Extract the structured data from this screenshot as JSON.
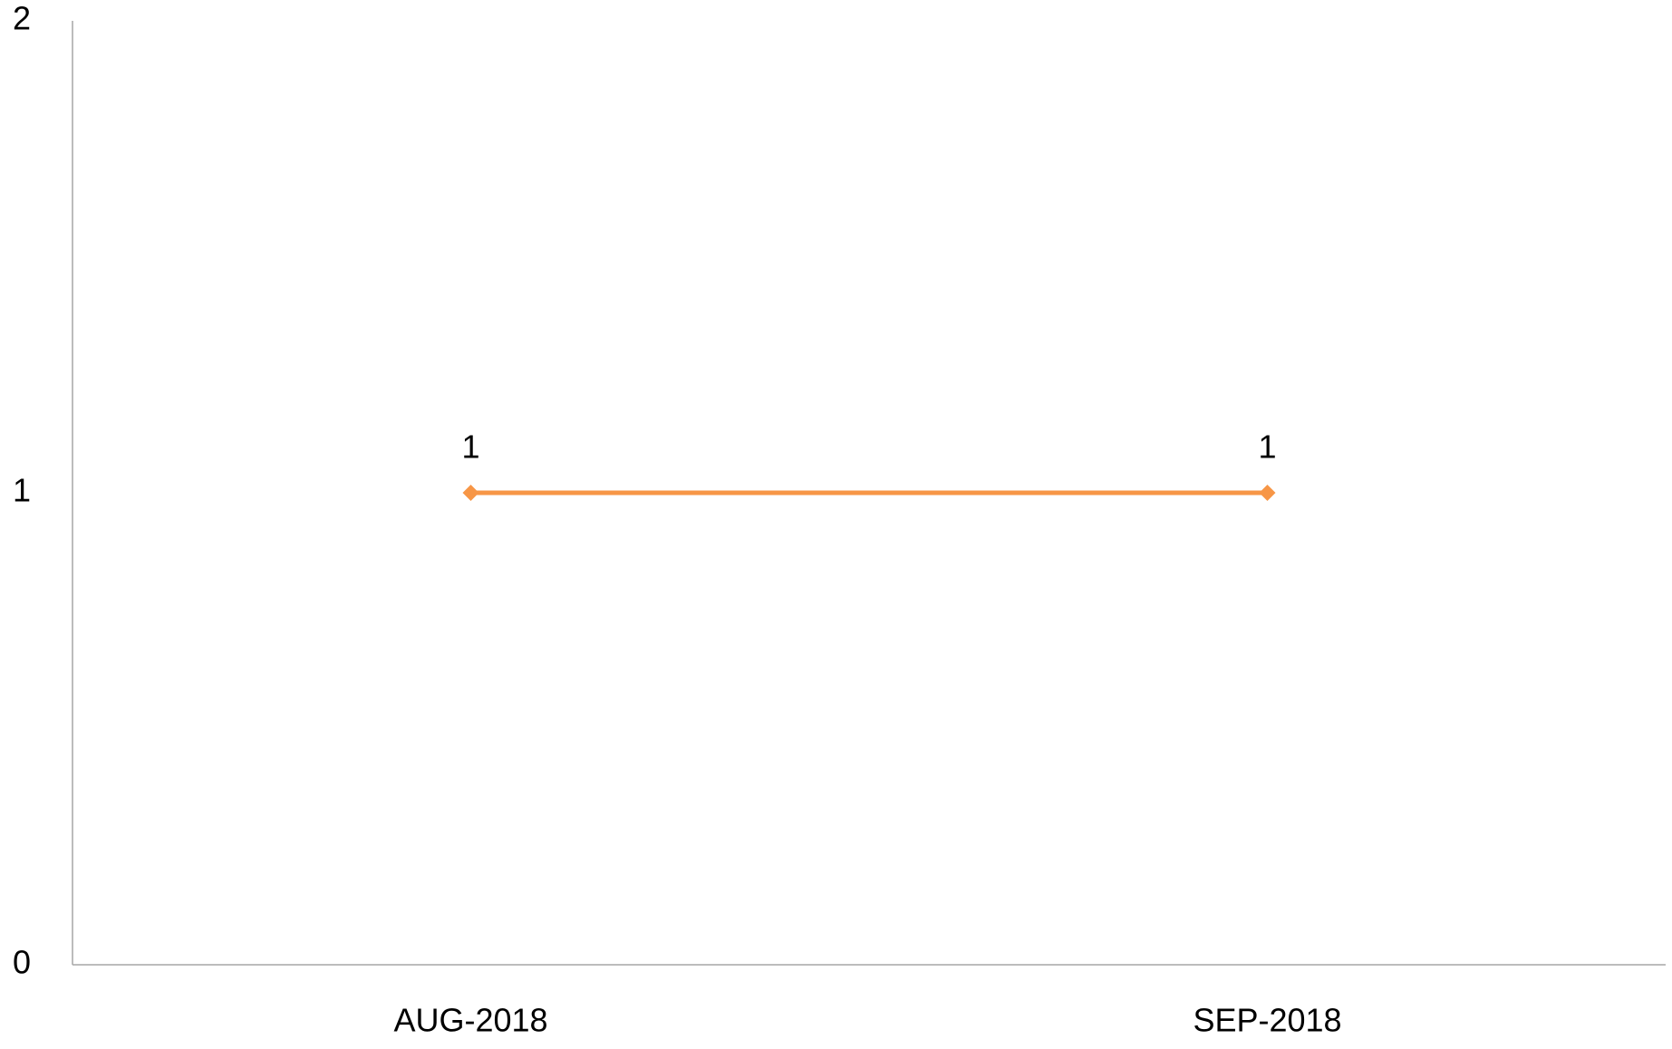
{
  "chart_data": {
    "type": "line",
    "categories": [
      "AUG-2018",
      "SEP-2018"
    ],
    "series": [
      {
        "color": "#f79646",
        "values": [
          1,
          1
        ]
      }
    ],
    "ylim": [
      0,
      2
    ],
    "yticks": [
      0,
      1,
      2
    ],
    "grid": false,
    "data_labels": true
  }
}
